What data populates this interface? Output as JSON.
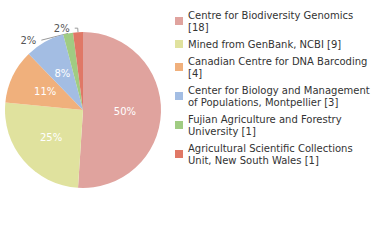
{
  "chart_data": {
    "type": "pie",
    "categories": [
      "Centre for Biodiversity Genomics [18]",
      "Mined from GenBank, NCBI [9]",
      "Canadian Centre for DNA Barcoding [4]",
      "Center for Biology and Management of Populations, Montpellier [3]",
      "Fujian Agriculture and Forestry University [1]",
      "Agricultural Scientific Collections Unit, New South Wales [1]"
    ],
    "values": [
      50,
      25,
      11,
      8,
      2,
      2
    ],
    "value_labels": [
      "50%",
      "25%",
      "11%",
      "8%",
      "2%",
      "2%"
    ],
    "colors": [
      "#e0a39e",
      "#e0e29e",
      "#f0b07c",
      "#a3bde3",
      "#a0cc82",
      "#e07866"
    ],
    "data_labels": true,
    "legend": "right"
  }
}
